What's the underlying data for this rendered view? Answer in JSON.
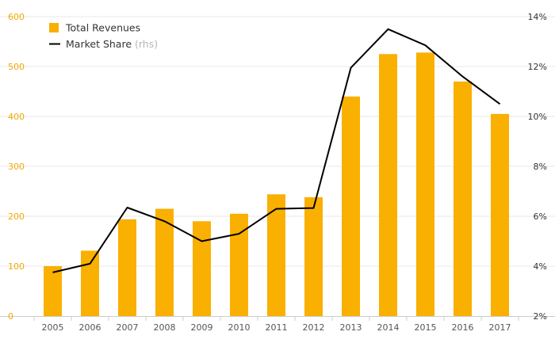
{
  "chart_data": {
    "type": "bar",
    "categories": [
      "2005",
      "2006",
      "2007",
      "2008",
      "2009",
      "2010",
      "2011",
      "2012",
      "2013",
      "2014",
      "2015",
      "2016",
      "2017"
    ],
    "series": [
      {
        "name": "Total Revenues",
        "type": "bar",
        "axis": "left",
        "color": "#f9b000",
        "values": [
          100,
          131,
          194,
          215,
          190,
          205,
          244,
          238,
          440,
          525,
          528,
          470,
          405
        ]
      },
      {
        "name": "Market Share",
        "name_note": "(rhs)",
        "type": "line",
        "axis": "right",
        "color": "#000000",
        "values": [
          3.75,
          4.1,
          6.35,
          5.8,
          5.0,
          5.3,
          6.3,
          6.33,
          11.95,
          13.5,
          12.85,
          11.6,
          10.5
        ]
      }
    ],
    "left_axis": {
      "ylim": [
        0,
        600
      ],
      "ticks": [
        0,
        100,
        200,
        300,
        400,
        500,
        600
      ],
      "tick_labels": [
        "0",
        "100",
        "200",
        "300",
        "400",
        "500",
        "600"
      ]
    },
    "right_axis": {
      "ylim": [
        2,
        14
      ],
      "ticks": [
        2,
        4,
        6,
        8,
        10,
        12,
        14
      ],
      "tick_labels": [
        "2%",
        "4%",
        "6%",
        "8%",
        "10%",
        "12%",
        "14%"
      ]
    },
    "grid": true,
    "legend_position": "top-left"
  }
}
